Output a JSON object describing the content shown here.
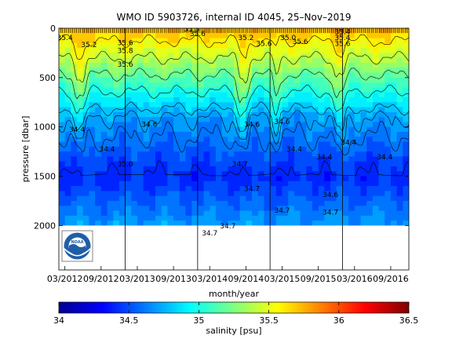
{
  "chart_data": [
    {
      "type": "heatmap",
      "title": "WMO ID 5903726, internal ID 4045, 25–Nov–2019",
      "xlabel": "month/year",
      "ylabel": "pressure [dbar]",
      "x_tick_labels": [
        "03/2012",
        "09/2012",
        "03/2013",
        "09/2013",
        "03/2014",
        "09/2014",
        "03/2015",
        "09/2015",
        "03/2016",
        "09/2016"
      ],
      "x_range": [
        "2012-02",
        "2016-12"
      ],
      "y_ticks": [
        0,
        500,
        1000,
        1500,
        2000
      ],
      "y_range": [
        2450,
        0
      ],
      "y_reversed": true,
      "year_boundaries": [
        "2013-01",
        "2014-01",
        "2015-01",
        "2016-01"
      ],
      "profile_depth_limit": 2000,
      "variable": "salinity",
      "contour_labels": [
        {
          "text": "35.4",
          "date": "2012-03",
          "pressure": 120
        },
        {
          "text": "35.2",
          "date": "2012-07",
          "pressure": 190
        },
        {
          "text": "35.6",
          "date": "2013-01",
          "pressure": 170
        },
        {
          "text": "35.8",
          "date": "2013-01",
          "pressure": 250
        },
        {
          "text": "35.6",
          "date": "2013-01",
          "pressure": 390
        },
        {
          "text": "35.8",
          "date": "2013-12",
          "pressure": 30
        },
        {
          "text": "35.6",
          "date": "2014-01",
          "pressure": 80
        },
        {
          "text": "35.2",
          "date": "2014-09",
          "pressure": 120
        },
        {
          "text": "35.6",
          "date": "2014-12",
          "pressure": 180
        },
        {
          "text": "35.0",
          "date": "2015-04",
          "pressure": 120
        },
        {
          "text": "35.6",
          "date": "2015-06",
          "pressure": 160
        },
        {
          "text": "35.4",
          "date": "2016-01",
          "pressure": 120
        },
        {
          "text": "35.4",
          "date": "2016-01",
          "pressure": 60
        },
        {
          "text": "35.6",
          "date": "2016-01",
          "pressure": 180
        },
        {
          "text": "35.0",
          "date": "2013-01",
          "pressure": 1400
        },
        {
          "text": "34.6",
          "date": "2013-05",
          "pressure": 1000
        },
        {
          "text": "34.4",
          "date": "2012-05",
          "pressure": 1050
        },
        {
          "text": "34.4",
          "date": "2012-10",
          "pressure": 1250
        },
        {
          "text": "34.6",
          "date": "2014-10",
          "pressure": 1000
        },
        {
          "text": "34.7",
          "date": "2014-08",
          "pressure": 1400
        },
        {
          "text": "34.7",
          "date": "2014-10",
          "pressure": 1650
        },
        {
          "text": "34.6",
          "date": "2015-03",
          "pressure": 970
        },
        {
          "text": "34.4",
          "date": "2015-05",
          "pressure": 1250
        },
        {
          "text": "34.4",
          "date": "2015-10",
          "pressure": 1330
        },
        {
          "text": "34.6",
          "date": "2015-11",
          "pressure": 1710
        },
        {
          "text": "34.4",
          "date": "2016-02",
          "pressure": 1180
        },
        {
          "text": "34.4",
          "date": "2016-08",
          "pressure": 1330
        },
        {
          "text": "34.7",
          "date": "2014-03",
          "pressure": 2100
        },
        {
          "text": "34.7",
          "date": "2014-06",
          "pressure": 2030
        },
        {
          "text": "34.7",
          "date": "2015-03",
          "pressure": 1870
        },
        {
          "text": "34.7",
          "date": "2015-11",
          "pressure": 1890
        }
      ]
    },
    {
      "type": "colorbar",
      "label": "salinity [psu]",
      "range": [
        34,
        36.5
      ],
      "tick_labels": [
        "34",
        "34.5",
        "35",
        "35.5",
        "36",
        "36.5"
      ]
    }
  ],
  "logo": {
    "text": "NOAA",
    "icon": "noaa-logo-icon"
  }
}
